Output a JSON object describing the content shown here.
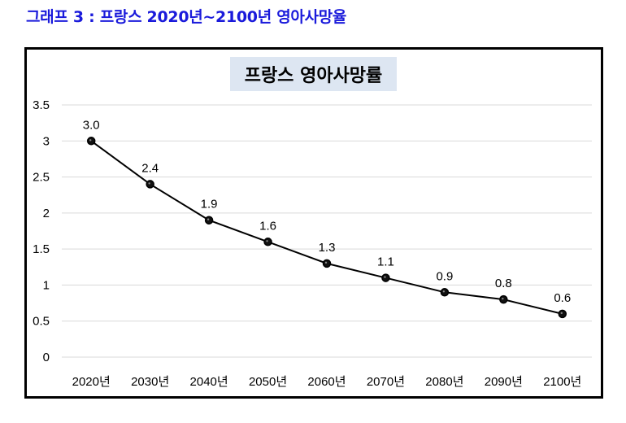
{
  "heading": "그래프 3 : 프랑스 2020년~2100년 영아사망율",
  "chart_data": {
    "type": "line",
    "title": "프랑스 영아사망률",
    "categories": [
      "2020년",
      "2030년",
      "2040년",
      "2050년",
      "2060년",
      "2070년",
      "2080년",
      "2090년",
      "2100년"
    ],
    "values": [
      3.0,
      2.4,
      1.9,
      1.6,
      1.3,
      1.1,
      0.9,
      0.8,
      0.6
    ],
    "data_labels": [
      "3.0",
      "2.4",
      "1.9",
      "1.6",
      "1.3",
      "1.1",
      "0.9",
      "0.8",
      "0.6"
    ],
    "y_ticks": [
      "0",
      "0.5",
      "1",
      "1.5",
      "2",
      "2.5",
      "3",
      "3.5"
    ],
    "ylim": [
      0,
      3.5
    ],
    "grid": true,
    "legend": "none",
    "series_color": "#000000",
    "gridline_color": "#d9d9d9",
    "title_background": "#dde6f2"
  }
}
